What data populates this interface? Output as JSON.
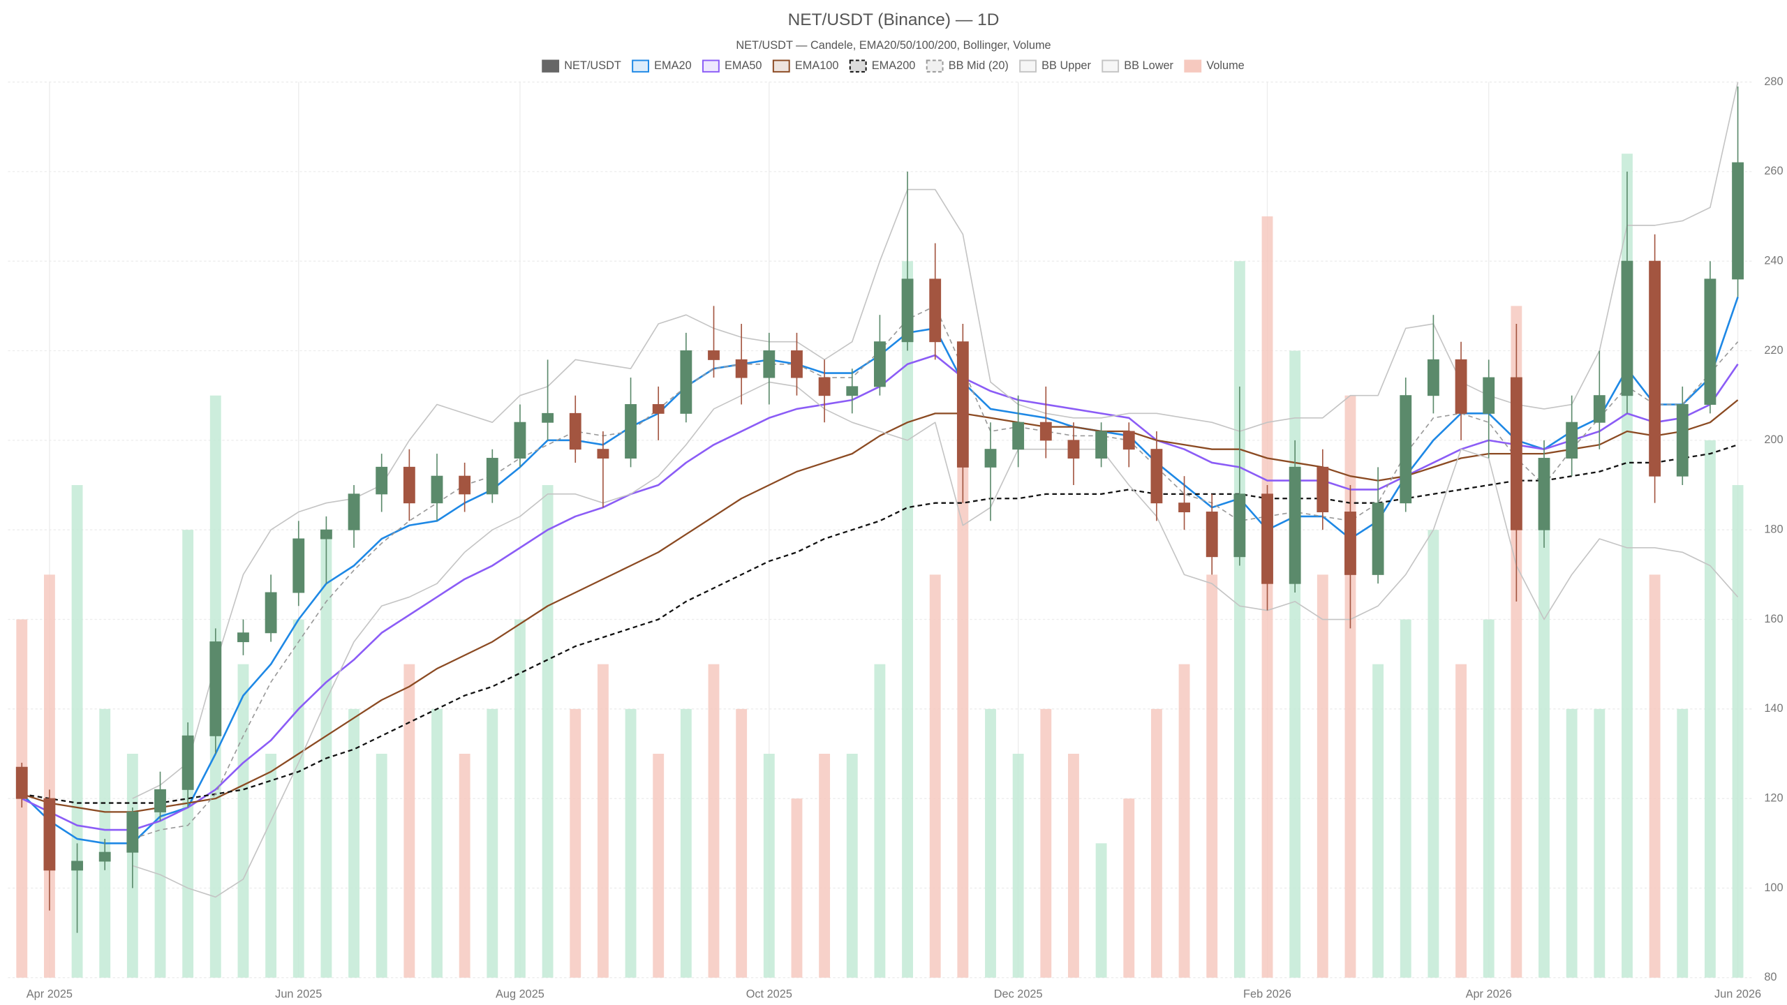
{
  "chart_data": {
    "type": "candlestick",
    "title": "NET/USDT (Binance) — 1D",
    "subtitle": "NET/USDT — Candele, EMA20/50/100/200, Bollinger, Volume",
    "categories": [
      null,
      "Apr 2025",
      null,
      null,
      null,
      null,
      null,
      null,
      null,
      null,
      "Jun 2025",
      null,
      null,
      null,
      null,
      null,
      null,
      null,
      "Aug 2025",
      null,
      null,
      null,
      null,
      null,
      null,
      null,
      null,
      "Oct 2025",
      null,
      null,
      null,
      null,
      null,
      null,
      null,
      null,
      "Dec 2025",
      null,
      null,
      null,
      null,
      null,
      null,
      null,
      null,
      "Feb 2026",
      null,
      null,
      null,
      null,
      null,
      null,
      null,
      "Apr 2026",
      null,
      null,
      null,
      null,
      null,
      null,
      null,
      null,
      "Jun 2026"
    ],
    "ylim": [
      80,
      280
    ],
    "yticks": [
      80,
      100,
      120,
      140,
      160,
      180,
      200,
      220,
      240,
      260,
      280
    ],
    "y2lim": [
      0,
      100
    ],
    "grid": true,
    "legend": "top",
    "series": [
      {
        "name": "NET/USDT",
        "kind": "candle",
        "color": "#666666",
        "up_color": "#5b8a6b",
        "down_color": "#a35540",
        "open": [
          127,
          120,
          104,
          106,
          108,
          117,
          122,
          134,
          155,
          157,
          166,
          178,
          180,
          188,
          194,
          186,
          192,
          188,
          196,
          204,
          206,
          198,
          196,
          208,
          206,
          220,
          218,
          214,
          220,
          214,
          210,
          212,
          222,
          236,
          222,
          194,
          198,
          204,
          200,
          196,
          202,
          198,
          186,
          184,
          174,
          188,
          168,
          194,
          184,
          170,
          186,
          210,
          218,
          206,
          214,
          180,
          196,
          204,
          210,
          240,
          192,
          208,
          236
        ],
        "high": [
          128,
          122,
          110,
          111,
          118,
          126,
          137,
          158,
          160,
          170,
          182,
          183,
          190,
          197,
          198,
          197,
          195,
          198,
          208,
          218,
          210,
          202,
          214,
          212,
          224,
          230,
          226,
          224,
          224,
          218,
          216,
          228,
          260,
          244,
          226,
          204,
          210,
          212,
          204,
          204,
          204,
          202,
          192,
          188,
          212,
          190,
          200,
          198,
          190,
          194,
          214,
          228,
          222,
          218,
          226,
          200,
          210,
          220,
          260,
          246,
          212,
          240,
          279
        ],
        "low": [
          118,
          95,
          90,
          104,
          100,
          115,
          118,
          130,
          152,
          155,
          163,
          168,
          176,
          184,
          182,
          182,
          184,
          186,
          194,
          200,
          195,
          185,
          194,
          200,
          204,
          214,
          208,
          208,
          210,
          204,
          206,
          210,
          220,
          218,
          186,
          182,
          194,
          196,
          190,
          194,
          194,
          182,
          180,
          170,
          172,
          162,
          166,
          180,
          158,
          168,
          184,
          206,
          200,
          196,
          164,
          176,
          192,
          198,
          206,
          186,
          190,
          206,
          232
        ],
        "close": [
          120,
          104,
          106,
          108,
          117,
          122,
          134,
          155,
          157,
          166,
          178,
          180,
          188,
          194,
          186,
          192,
          188,
          196,
          204,
          206,
          198,
          196,
          208,
          206,
          220,
          218,
          214,
          220,
          214,
          210,
          212,
          222,
          236,
          222,
          194,
          198,
          204,
          200,
          196,
          202,
          198,
          186,
          184,
          174,
          188,
          168,
          194,
          184,
          170,
          186,
          210,
          218,
          206,
          214,
          180,
          196,
          204,
          210,
          240,
          192,
          208,
          236,
          262
        ]
      },
      {
        "name": "EMA20",
        "kind": "line",
        "color": "#1e88e5",
        "width": 1.6,
        "dashed": false,
        "values": [
          121,
          115,
          111,
          110,
          110,
          116,
          118,
          130,
          143,
          150,
          160,
          168,
          172,
          178,
          181,
          182,
          186,
          189,
          194,
          200,
          200,
          199,
          203,
          206,
          212,
          216,
          217,
          218,
          217,
          215,
          215,
          219,
          224,
          225,
          213,
          207,
          206,
          205,
          203,
          202,
          201,
          195,
          190,
          185,
          187,
          180,
          183,
          183,
          178,
          182,
          192,
          200,
          206,
          206,
          200,
          198,
          202,
          205,
          216,
          208,
          208,
          214,
          232
        ]
      },
      {
        "name": "EMA50",
        "kind": "line",
        "color": "#8b5cf6",
        "width": 1.6,
        "dashed": false,
        "values": [
          120,
          117,
          114,
          113,
          113,
          115,
          118,
          122,
          128,
          133,
          140,
          146,
          151,
          157,
          161,
          165,
          169,
          172,
          176,
          180,
          183,
          185,
          188,
          190,
          195,
          199,
          202,
          205,
          207,
          208,
          209,
          212,
          217,
          219,
          214,
          211,
          209,
          208,
          207,
          206,
          205,
          200,
          198,
          195,
          194,
          191,
          191,
          191,
          189,
          189,
          192,
          195,
          198,
          200,
          199,
          198,
          200,
          202,
          206,
          204,
          205,
          208,
          217
        ]
      },
      {
        "name": "EMA100",
        "kind": "line",
        "color": "#8b4a22",
        "width": 1.4,
        "dashed": false,
        "values": [
          121,
          119,
          118,
          117,
          117,
          118,
          119,
          120,
          123,
          126,
          130,
          134,
          138,
          142,
          145,
          149,
          152,
          155,
          159,
          163,
          166,
          169,
          172,
          175,
          179,
          183,
          187,
          190,
          193,
          195,
          197,
          201,
          204,
          206,
          206,
          205,
          204,
          203,
          203,
          202,
          202,
          200,
          199,
          198,
          198,
          196,
          195,
          194,
          192,
          191,
          192,
          194,
          196,
          197,
          197,
          197,
          198,
          199,
          202,
          201,
          202,
          204,
          209
        ]
      },
      {
        "name": "EMA200",
        "kind": "line",
        "color": "#111111",
        "width": 1.4,
        "dashed": true,
        "values": [
          121,
          120,
          119,
          119,
          119,
          119,
          120,
          121,
          122,
          124,
          126,
          129,
          131,
          134,
          137,
          140,
          143,
          145,
          148,
          151,
          154,
          156,
          158,
          160,
          164,
          167,
          170,
          173,
          175,
          178,
          180,
          182,
          185,
          186,
          186,
          187,
          187,
          188,
          188,
          188,
          189,
          188,
          188,
          188,
          188,
          187,
          187,
          187,
          186,
          186,
          187,
          188,
          189,
          190,
          191,
          191,
          192,
          193,
          195,
          195,
          196,
          197,
          199
        ]
      },
      {
        "name": "BB Mid (20)",
        "kind": "line",
        "color": "#999999",
        "width": 1,
        "dashed": true,
        "values": [
          null,
          null,
          null,
          null,
          111,
          113,
          114,
          121,
          134,
          146,
          155,
          164,
          171,
          177,
          182,
          186,
          190,
          192,
          196,
          199,
          202,
          201,
          202,
          207,
          212,
          216,
          217,
          217,
          217,
          214,
          214,
          220,
          227,
          230,
          216,
          202,
          203,
          202,
          201,
          201,
          200,
          194,
          188,
          186,
          182,
          183,
          184,
          183,
          182,
          186,
          197,
          205,
          206,
          204,
          196,
          190,
          198,
          205,
          212,
          208,
          208,
          215,
          222
        ]
      },
      {
        "name": "BB Upper",
        "kind": "line",
        "color": "#c4c4c4",
        "width": 1,
        "dashed": false,
        "values": [
          null,
          null,
          null,
          null,
          120,
          123,
          128,
          150,
          170,
          180,
          184,
          186,
          187,
          190,
          200,
          208,
          206,
          204,
          210,
          212,
          218,
          217,
          216,
          226,
          228,
          225,
          223,
          222,
          222,
          218,
          222,
          240,
          256,
          256,
          246,
          213,
          208,
          206,
          205,
          205,
          206,
          206,
          205,
          204,
          202,
          204,
          205,
          205,
          210,
          210,
          225,
          226,
          213,
          210,
          208,
          207,
          208,
          220,
          248,
          248,
          249,
          252,
          280
        ]
      },
      {
        "name": "BB Lower",
        "kind": "line",
        "color": "#c4c4c4",
        "width": 1,
        "dashed": false,
        "values": [
          null,
          null,
          null,
          null,
          105,
          103,
          100,
          98,
          102,
          115,
          128,
          142,
          155,
          163,
          165,
          168,
          175,
          180,
          183,
          188,
          188,
          186,
          188,
          192,
          199,
          207,
          210,
          213,
          212,
          207,
          204,
          202,
          200,
          204,
          181,
          185,
          198,
          198,
          198,
          198,
          190,
          183,
          170,
          168,
          163,
          162,
          164,
          160,
          160,
          163,
          170,
          180,
          198,
          196,
          172,
          160,
          170,
          178,
          176,
          176,
          175,
          172,
          165
        ]
      },
      {
        "name": "Volume",
        "kind": "volume",
        "axis": "y2",
        "color": "#f6c9bf",
        "up_color": "#c3ead6",
        "values": [
          40,
          45,
          55,
          30,
          25,
          20,
          50,
          65,
          35,
          25,
          40,
          50,
          30,
          25,
          35,
          30,
          25,
          30,
          40,
          55,
          30,
          35,
          30,
          25,
          30,
          35,
          30,
          25,
          20,
          25,
          25,
          35,
          80,
          45,
          60,
          30,
          25,
          30,
          25,
          15,
          20,
          30,
          35,
          45,
          80,
          85,
          70,
          45,
          65,
          35,
          40,
          50,
          35,
          40,
          75,
          55,
          30,
          30,
          92,
          45,
          30,
          60,
          55
        ]
      }
    ]
  }
}
